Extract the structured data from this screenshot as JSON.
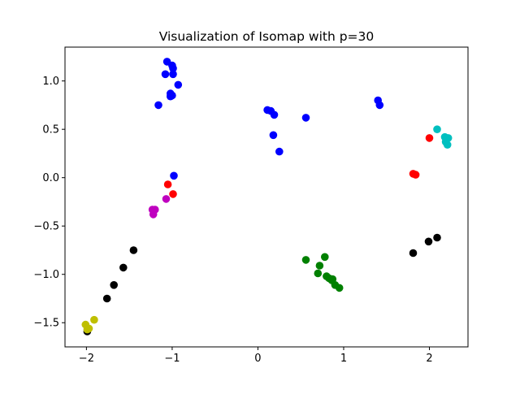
{
  "chart_data": {
    "type": "scatter",
    "title": "Visualization of Isomap with p=30",
    "xlabel": "",
    "ylabel": "",
    "xlim": [
      -2.25,
      2.45
    ],
    "ylim": [
      -1.75,
      1.35
    ],
    "xticks": [
      -2,
      -1,
      0,
      1,
      2
    ],
    "xtick_labels": [
      "−2",
      "−1",
      "0",
      "1",
      "2"
    ],
    "yticks": [
      -1.5,
      -1.0,
      -0.5,
      0.0,
      0.5,
      1.0
    ],
    "ytick_labels": [
      "−1.5",
      "−1.0",
      "−0.5",
      "0.0",
      "0.5",
      "1.0"
    ],
    "grid": false,
    "legend": "none",
    "series": [
      {
        "color": "#0000ff",
        "x": [
          -1.06,
          -1.0,
          -0.99,
          -1.08,
          -0.99,
          -0.93,
          -1.02,
          -1.0,
          -1.02,
          -1.16,
          -0.98,
          0.11,
          0.15,
          0.19,
          0.56,
          0.18,
          0.25,
          1.4,
          1.42
        ],
        "y": [
          1.2,
          1.16,
          1.13,
          1.07,
          1.07,
          0.96,
          0.87,
          0.85,
          0.84,
          0.75,
          0.02,
          0.7,
          0.69,
          0.65,
          0.62,
          0.44,
          0.27,
          0.8,
          0.75
        ]
      },
      {
        "color": "#ff0000",
        "x": [
          -1.05,
          -0.99,
          2.0,
          1.81,
          1.84
        ],
        "y": [
          -0.07,
          -0.17,
          0.41,
          0.04,
          0.03
        ]
      },
      {
        "color": "#bf00bf",
        "x": [
          -1.2,
          -1.23,
          -1.22,
          -1.07
        ],
        "y": [
          -0.33,
          -0.33,
          -0.38,
          -0.22
        ]
      },
      {
        "color": "#000000",
        "x": [
          -1.45,
          -1.57,
          -1.68,
          -1.76,
          -1.99,
          1.81,
          1.99,
          2.09
        ],
        "y": [
          -0.75,
          -0.93,
          -1.11,
          -1.25,
          -1.59,
          -0.78,
          -0.66,
          -0.62
        ]
      },
      {
        "color": "#bfbf00",
        "x": [
          -2.01,
          -1.97,
          -1.91,
          -1.99
        ],
        "y": [
          -1.52,
          -1.56,
          -1.47,
          -1.57
        ]
      },
      {
        "color": "#008000",
        "x": [
          0.56,
          0.78,
          0.72,
          0.7,
          0.8,
          0.83,
          0.87,
          0.86,
          0.9,
          0.95
        ],
        "y": [
          -0.85,
          -0.82,
          -0.91,
          -0.99,
          -1.02,
          -1.04,
          -1.05,
          -1.06,
          -1.11,
          -1.14
        ]
      },
      {
        "color": "#00bfbf",
        "x": [
          2.09,
          2.18,
          2.2,
          2.22,
          2.19,
          2.21
        ],
        "y": [
          0.5,
          0.42,
          0.4,
          0.41,
          0.37,
          0.34
        ]
      }
    ]
  }
}
